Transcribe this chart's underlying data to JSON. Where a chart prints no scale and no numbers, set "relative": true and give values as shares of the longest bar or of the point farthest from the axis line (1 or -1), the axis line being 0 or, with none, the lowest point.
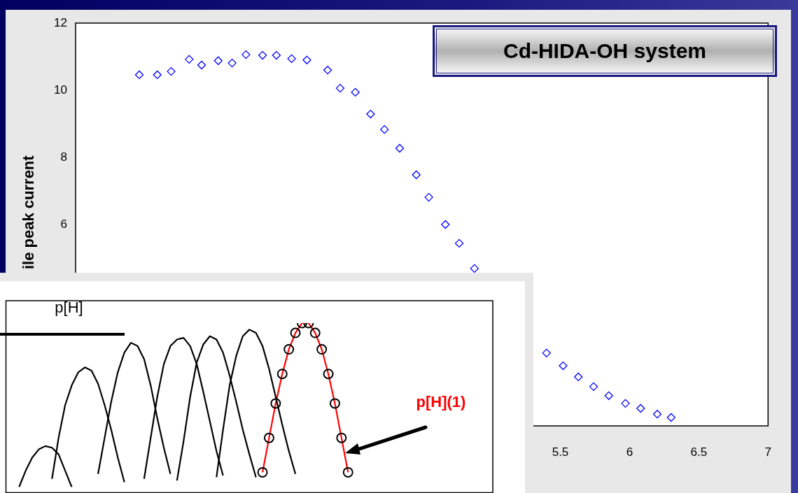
{
  "chart_data": [
    {
      "type": "scatter",
      "title": "Cd-HIDA-OH system",
      "ylabel": "ile peak current",
      "x": [
        2.46,
        2.59,
        2.69,
        2.82,
        2.91,
        3.03,
        3.13,
        3.23,
        3.35,
        3.45,
        3.56,
        3.67,
        3.82,
        3.91,
        4.02,
        4.13,
        4.23,
        4.34,
        4.46,
        4.55,
        4.67,
        4.77,
        4.88,
        5.4,
        5.52,
        5.63,
        5.74,
        5.85,
        5.97,
        6.08,
        6.2,
        6.3
      ],
      "values": [
        10.46,
        10.46,
        10.56,
        10.92,
        10.75,
        10.88,
        10.81,
        11.06,
        11.04,
        11.04,
        10.94,
        10.9,
        10.6,
        10.06,
        9.94,
        9.29,
        8.83,
        8.27,
        7.48,
        6.81,
        6.0,
        5.44,
        4.69,
        2.17,
        1.79,
        1.46,
        1.17,
        0.9,
        0.67,
        0.52,
        0.35,
        0.25
      ],
      "color": "#0000ff",
      "marker": "diamond",
      "xlim": [
        2,
        7
      ],
      "xticks": [
        5.5,
        6,
        6.5,
        7
      ],
      "ylim": [
        0,
        12
      ],
      "yticks": [
        6,
        8,
        10,
        12
      ],
      "grid": false,
      "legend": false
    },
    {
      "type": "line",
      "relative": true,
      "tick_labels": false,
      "grid": false,
      "legend": false,
      "annotations": [
        "p[H]",
        "p[H](1)"
      ],
      "categories": [
        null,
        null,
        null,
        null,
        null,
        null,
        null,
        null,
        null,
        null,
        null,
        null,
        null,
        null,
        null,
        null,
        null,
        null,
        null,
        null,
        null,
        null,
        null,
        null,
        null,
        null,
        null,
        null,
        null,
        null,
        null,
        null,
        null,
        null,
        null,
        null,
        null,
        null,
        null,
        null,
        null,
        null,
        null,
        null,
        null,
        null,
        null,
        null,
        null,
        null,
        null,
        null,
        null,
        null,
        null,
        null,
        null,
        null,
        null,
        null,
        null,
        null,
        null,
        null,
        null,
        null,
        null,
        null,
        null,
        null,
        null,
        null,
        null,
        null,
        null
      ],
      "series": [
        {
          "color": "#000000",
          "values": [
            null,
            null,
            0,
            0.1,
            0.18,
            0.23,
            0.25,
            0.24,
            0.2,
            0.1,
            0,
            null,
            null,
            null,
            null,
            null,
            null,
            null,
            null,
            null,
            null,
            null,
            null,
            null,
            null,
            null,
            null,
            null,
            null,
            null,
            null,
            null,
            null,
            null,
            null,
            null,
            null,
            null,
            null,
            null,
            null,
            null,
            null,
            null,
            null,
            null,
            null,
            null,
            null,
            null,
            null,
            null,
            null,
            null,
            null,
            null,
            null,
            null,
            null,
            null,
            null,
            null,
            null,
            null,
            null,
            null,
            null,
            null,
            null,
            null,
            null,
            null,
            null,
            null,
            null
          ]
        },
        {
          "color": "#000000",
          "values": [
            null,
            null,
            null,
            null,
            null,
            null,
            null,
            0.05,
            0.3,
            0.5,
            0.62,
            0.7,
            0.73,
            0.71,
            0.63,
            0.5,
            0.35,
            0.18,
            0.03,
            null,
            null,
            null,
            null,
            null,
            null,
            null,
            null,
            null,
            null,
            null,
            null,
            null,
            null,
            null,
            null,
            null,
            null,
            null,
            null,
            null,
            null,
            null,
            null,
            null,
            null,
            null,
            null,
            null,
            null,
            null,
            null,
            null,
            null,
            null,
            null,
            null,
            null,
            null,
            null,
            null,
            null,
            null,
            null,
            null,
            null,
            null,
            null,
            null,
            null,
            null,
            null,
            null,
            null,
            null,
            null
          ]
        },
        {
          "color": "#000000",
          "values": [
            null,
            null,
            null,
            null,
            null,
            null,
            null,
            null,
            null,
            null,
            null,
            null,
            null,
            null,
            0.08,
            0.3,
            0.52,
            0.7,
            0.82,
            0.88,
            0.86,
            0.78,
            0.62,
            0.42,
            0.24,
            0.08,
            null,
            null,
            null,
            null,
            null,
            null,
            null,
            null,
            null,
            null,
            null,
            null,
            null,
            null,
            null,
            null,
            null,
            null,
            null,
            null,
            null,
            null,
            null,
            null,
            null,
            null,
            null,
            null,
            null,
            null,
            null,
            null,
            null,
            null,
            null,
            null,
            null,
            null,
            null,
            null,
            null,
            null,
            null,
            null,
            null,
            null,
            null,
            null,
            null
          ]
        },
        {
          "color": "#000000",
          "values": [
            null,
            null,
            null,
            null,
            null,
            null,
            null,
            null,
            null,
            null,
            null,
            null,
            null,
            null,
            null,
            null,
            null,
            null,
            null,
            null,
            null,
            0.05,
            0.3,
            0.55,
            0.75,
            0.86,
            0.9,
            0.91,
            0.86,
            0.75,
            0.58,
            0.4,
            0.22,
            0.07,
            null,
            null,
            null,
            null,
            null,
            null,
            null,
            null,
            null,
            null,
            null,
            null,
            null,
            null,
            null,
            null,
            null,
            null,
            null,
            null,
            null,
            null,
            null,
            null,
            null,
            null,
            null,
            null,
            null,
            null,
            null,
            null,
            null,
            null,
            null,
            null,
            null,
            null,
            null,
            null,
            null
          ]
        },
        {
          "color": "#000000",
          "values": [
            null,
            null,
            null,
            null,
            null,
            null,
            null,
            null,
            null,
            null,
            null,
            null,
            null,
            null,
            null,
            null,
            null,
            null,
            null,
            null,
            null,
            null,
            null,
            null,
            null,
            null,
            0.04,
            0.28,
            0.55,
            0.76,
            0.87,
            0.92,
            0.9,
            0.82,
            0.68,
            0.52,
            0.35,
            0.2,
            0.06,
            null,
            null,
            null,
            null,
            null,
            null,
            null,
            null,
            null,
            null,
            null,
            null,
            null,
            null,
            null,
            null,
            null,
            null,
            null,
            null,
            null,
            null,
            null,
            null,
            null,
            null,
            null,
            null,
            null,
            null,
            null,
            null,
            null,
            null,
            null,
            null
          ]
        },
        {
          "color": "#000000",
          "values": [
            null,
            null,
            null,
            null,
            null,
            null,
            null,
            null,
            null,
            null,
            null,
            null,
            null,
            null,
            null,
            null,
            null,
            null,
            null,
            null,
            null,
            null,
            null,
            null,
            null,
            null,
            null,
            null,
            null,
            null,
            null,
            null,
            0.06,
            0.35,
            0.62,
            0.8,
            0.92,
            0.96,
            0.94,
            0.86,
            0.72,
            0.55,
            0.38,
            0.22,
            0.08,
            null,
            null,
            null,
            null,
            null,
            null,
            null,
            null,
            null,
            null,
            null,
            null,
            null,
            null,
            null,
            null,
            null,
            null,
            null,
            null,
            null,
            null,
            null,
            null,
            null,
            null,
            null,
            null,
            null,
            null
          ]
        },
        {
          "color": "#ff0000",
          "marker": "circle",
          "values": [
            null,
            null,
            null,
            null,
            null,
            null,
            null,
            null,
            null,
            null,
            null,
            null,
            null,
            null,
            null,
            null,
            null,
            null,
            null,
            null,
            null,
            null,
            null,
            null,
            null,
            null,
            null,
            null,
            null,
            null,
            null,
            null,
            null,
            null,
            null,
            null,
            null,
            null,
            null,
            0.09,
            0.3,
            0.51,
            0.69,
            0.84,
            0.94,
            1,
            1,
            0.94,
            0.84,
            0.69,
            0.51,
            0.3,
            0.09,
            null,
            null,
            null,
            null,
            null,
            null,
            null,
            null,
            null,
            null,
            null,
            null,
            null,
            null,
            null,
            null,
            null,
            null,
            null,
            null,
            null,
            null
          ]
        }
      ]
    }
  ]
}
